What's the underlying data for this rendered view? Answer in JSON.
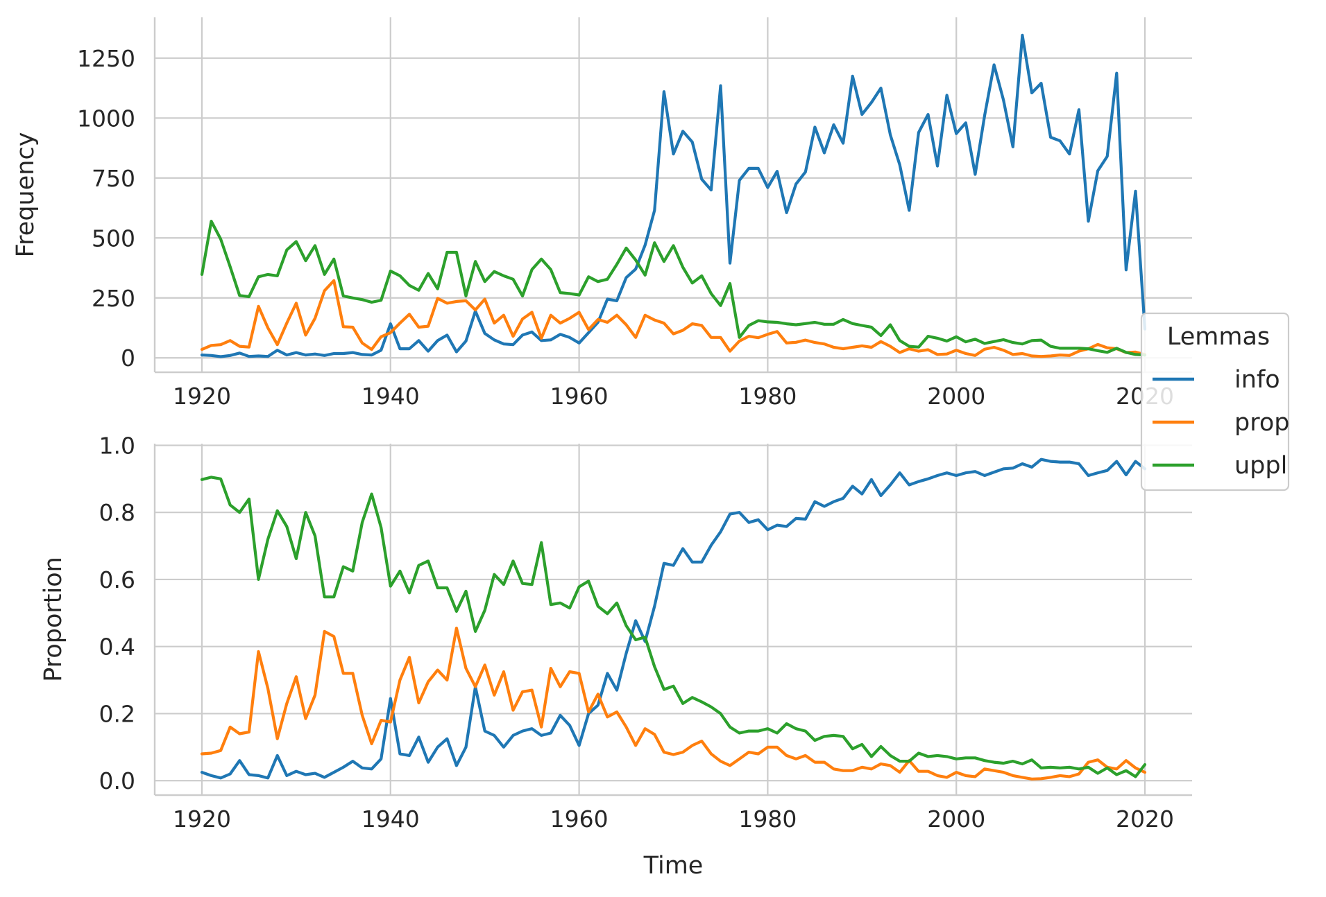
{
  "chart_data": [
    {
      "type": "line",
      "panel": "top",
      "xlabel": "",
      "ylabel": "Frequency",
      "xlim": [
        1915,
        2025
      ],
      "ylim": [
        -60,
        1420
      ],
      "xticks": [
        1920,
        1940,
        1960,
        1980,
        2000,
        2020
      ],
      "xtick_labels": [
        "1920",
        "1940",
        "1960",
        "1980",
        "2000",
        "2020"
      ],
      "yticks": [
        0,
        250,
        500,
        750,
        1000,
        1250
      ],
      "ytick_labels": [
        "0",
        "250",
        "500",
        "750",
        "1000",
        "1250"
      ],
      "grid": true,
      "x": [
        1920,
        1921,
        1922,
        1923,
        1924,
        1925,
        1926,
        1927,
        1928,
        1929,
        1930,
        1931,
        1932,
        1933,
        1934,
        1935,
        1936,
        1937,
        1938,
        1939,
        1940,
        1941,
        1942,
        1943,
        1944,
        1945,
        1946,
        1947,
        1948,
        1949,
        1950,
        1951,
        1952,
        1953,
        1954,
        1955,
        1956,
        1957,
        1958,
        1959,
        1960,
        1961,
        1962,
        1963,
        1964,
        1965,
        1966,
        1967,
        1968,
        1969,
        1970,
        1971,
        1972,
        1973,
        1974,
        1975,
        1976,
        1977,
        1978,
        1979,
        1980,
        1981,
        1982,
        1983,
        1984,
        1985,
        1986,
        1987,
        1988,
        1989,
        1990,
        1991,
        1992,
        1993,
        1994,
        1995,
        1996,
        1997,
        1998,
        1999,
        2000,
        2001,
        2002,
        2003,
        2004,
        2005,
        2006,
        2007,
        2008,
        2009,
        2010,
        2011,
        2012,
        2013,
        2014,
        2015,
        2016,
        2017,
        2018,
        2019,
        2020
      ],
      "series": [
        {
          "name": "info",
          "values": [
            12,
            10,
            5,
            10,
            20,
            6,
            8,
            6,
            32,
            12,
            22,
            12,
            16,
            10,
            18,
            18,
            22,
            14,
            12,
            32,
            142,
            38,
            38,
            72,
            28,
            72,
            95,
            25,
            70,
            195,
            102,
            75,
            58,
            55,
            95,
            108,
            72,
            75,
            98,
            85,
            62,
            105,
            148,
            245,
            238,
            335,
            370,
            470,
            615,
            1110,
            850,
            945,
            900,
            745,
            700,
            1135,
            395,
            740,
            790,
            790,
            710,
            778,
            605,
            725,
            775,
            962,
            855,
            972,
            895,
            1175,
            1015,
            1065,
            1125,
            930,
            805,
            615,
            940,
            1015,
            800,
            1095,
            935,
            980,
            765,
            1010,
            1222,
            1075,
            880,
            1345,
            1105,
            1145,
            920,
            905,
            850,
            1035,
            570,
            780,
            840,
            1187,
            367,
            695,
            120
          ]
        },
        {
          "name": "prop",
          "values": [
            35,
            52,
            55,
            72,
            48,
            45,
            215,
            125,
            55,
            145,
            228,
            95,
            165,
            280,
            322,
            130,
            128,
            62,
            35,
            88,
            105,
            145,
            182,
            128,
            132,
            248,
            228,
            235,
            238,
            200,
            245,
            145,
            178,
            90,
            162,
            190,
            82,
            178,
            145,
            165,
            190,
            118,
            160,
            148,
            178,
            138,
            85,
            178,
            158,
            145,
            100,
            115,
            142,
            135,
            85,
            85,
            28,
            70,
            90,
            84,
            98,
            110,
            62,
            65,
            74,
            64,
            58,
            44,
            38,
            44,
            50,
            44,
            68,
            48,
            22,
            38,
            28,
            34,
            14,
            16,
            32,
            18,
            10,
            36,
            44,
            32,
            14,
            18,
            8,
            6,
            8,
            12,
            10,
            28,
            38,
            56,
            42,
            38,
            22,
            24,
            14
          ]
        },
        {
          "name": "uppl",
          "values": [
            348,
            570,
            495,
            380,
            260,
            255,
            338,
            348,
            342,
            450,
            485,
            405,
            468,
            348,
            412,
            258,
            250,
            243,
            232,
            240,
            362,
            342,
            302,
            282,
            352,
            288,
            440,
            440,
            258,
            402,
            318,
            360,
            342,
            328,
            258,
            368,
            412,
            368,
            272,
            268,
            262,
            338,
            318,
            328,
            390,
            458,
            408,
            345,
            480,
            402,
            468,
            378,
            312,
            342,
            268,
            218,
            310,
            85,
            135,
            155,
            150,
            148,
            142,
            138,
            143,
            148,
            140,
            140,
            160,
            143,
            135,
            128,
            93,
            138,
            72,
            48,
            45,
            90,
            82,
            70,
            88,
            67,
            78,
            60,
            68,
            76,
            64,
            58,
            72,
            74,
            48,
            40,
            40,
            40,
            38,
            30,
            23,
            40,
            23,
            14,
            12
          ]
        }
      ]
    },
    {
      "type": "line",
      "panel": "bottom",
      "xlabel": "Time",
      "ylabel": "Proportion",
      "xlim": [
        1915,
        2025
      ],
      "ylim": [
        -0.043,
        1.005
      ],
      "xticks": [
        1920,
        1940,
        1960,
        1980,
        2000,
        2020
      ],
      "xtick_labels": [
        "1920",
        "1940",
        "1960",
        "1980",
        "2000",
        "2020"
      ],
      "yticks": [
        0.0,
        0.2,
        0.4,
        0.6,
        0.8,
        1.0
      ],
      "ytick_labels": [
        "0.0",
        "0.2",
        "0.4",
        "0.6",
        "0.8",
        "1.0"
      ],
      "grid": true,
      "x": [
        1920,
        1921,
        1922,
        1923,
        1924,
        1925,
        1926,
        1927,
        1928,
        1929,
        1930,
        1931,
        1932,
        1933,
        1934,
        1935,
        1936,
        1937,
        1938,
        1939,
        1940,
        1941,
        1942,
        1943,
        1944,
        1945,
        1946,
        1947,
        1948,
        1949,
        1950,
        1951,
        1952,
        1953,
        1954,
        1955,
        1956,
        1957,
        1958,
        1959,
        1960,
        1961,
        1962,
        1963,
        1964,
        1965,
        1966,
        1967,
        1968,
        1969,
        1970,
        1971,
        1972,
        1973,
        1974,
        1975,
        1976,
        1977,
        1978,
        1979,
        1980,
        1981,
        1982,
        1983,
        1984,
        1985,
        1986,
        1987,
        1988,
        1989,
        1990,
        1991,
        1992,
        1993,
        1994,
        1995,
        1996,
        1997,
        1998,
        1999,
        2000,
        2001,
        2002,
        2003,
        2004,
        2005,
        2006,
        2007,
        2008,
        2009,
        2010,
        2011,
        2012,
        2013,
        2014,
        2015,
        2016,
        2017,
        2018,
        2019,
        2020
      ],
      "series": [
        {
          "name": "info",
          "values": [
            0.025,
            0.015,
            0.008,
            0.02,
            0.06,
            0.018,
            0.015,
            0.008,
            0.075,
            0.015,
            0.028,
            0.018,
            0.022,
            0.01,
            0.025,
            0.04,
            0.058,
            0.038,
            0.035,
            0.065,
            0.245,
            0.08,
            0.075,
            0.13,
            0.055,
            0.1,
            0.125,
            0.045,
            0.1,
            0.28,
            0.148,
            0.135,
            0.1,
            0.135,
            0.148,
            0.155,
            0.135,
            0.142,
            0.195,
            0.165,
            0.105,
            0.2,
            0.225,
            0.32,
            0.27,
            0.38,
            0.477,
            0.415,
            0.52,
            0.648,
            0.642,
            0.692,
            0.652,
            0.652,
            0.702,
            0.742,
            0.795,
            0.8,
            0.77,
            0.778,
            0.748,
            0.762,
            0.758,
            0.782,
            0.78,
            0.832,
            0.818,
            0.832,
            0.842,
            0.878,
            0.855,
            0.898,
            0.85,
            0.882,
            0.918,
            0.882,
            0.892,
            0.9,
            0.91,
            0.918,
            0.91,
            0.918,
            0.922,
            0.91,
            0.92,
            0.93,
            0.932,
            0.945,
            0.935,
            0.958,
            0.952,
            0.95,
            0.95,
            0.945,
            0.91,
            0.918,
            0.925,
            0.952,
            0.912,
            0.952,
            0.93
          ]
        },
        {
          "name": "prop",
          "values": [
            0.08,
            0.082,
            0.09,
            0.16,
            0.14,
            0.145,
            0.385,
            0.275,
            0.125,
            0.23,
            0.31,
            0.185,
            0.255,
            0.445,
            0.43,
            0.32,
            0.32,
            0.195,
            0.11,
            0.18,
            0.175,
            0.3,
            0.368,
            0.232,
            0.295,
            0.33,
            0.3,
            0.455,
            0.335,
            0.28,
            0.345,
            0.255,
            0.325,
            0.21,
            0.265,
            0.27,
            0.16,
            0.335,
            0.28,
            0.325,
            0.32,
            0.205,
            0.258,
            0.19,
            0.205,
            0.16,
            0.105,
            0.155,
            0.138,
            0.085,
            0.078,
            0.085,
            0.105,
            0.118,
            0.08,
            0.058,
            0.045,
            0.065,
            0.085,
            0.08,
            0.1,
            0.1,
            0.075,
            0.065,
            0.075,
            0.055,
            0.055,
            0.035,
            0.03,
            0.03,
            0.04,
            0.035,
            0.05,
            0.045,
            0.025,
            0.06,
            0.028,
            0.028,
            0.015,
            0.01,
            0.025,
            0.015,
            0.012,
            0.035,
            0.03,
            0.025,
            0.015,
            0.01,
            0.005,
            0.006,
            0.01,
            0.015,
            0.012,
            0.02,
            0.055,
            0.062,
            0.04,
            0.035,
            0.06,
            0.038,
            0.025
          ]
        },
        {
          "name": "uppl",
          "values": [
            0.898,
            0.905,
            0.9,
            0.822,
            0.8,
            0.84,
            0.6,
            0.72,
            0.805,
            0.758,
            0.662,
            0.8,
            0.73,
            0.548,
            0.548,
            0.638,
            0.625,
            0.77,
            0.855,
            0.755,
            0.58,
            0.625,
            0.56,
            0.642,
            0.655,
            0.575,
            0.575,
            0.505,
            0.565,
            0.445,
            0.508,
            0.615,
            0.585,
            0.655,
            0.588,
            0.585,
            0.71,
            0.525,
            0.53,
            0.515,
            0.578,
            0.595,
            0.52,
            0.498,
            0.53,
            0.462,
            0.42,
            0.428,
            0.34,
            0.272,
            0.282,
            0.23,
            0.248,
            0.235,
            0.22,
            0.2,
            0.16,
            0.142,
            0.148,
            0.148,
            0.155,
            0.142,
            0.17,
            0.155,
            0.148,
            0.12,
            0.132,
            0.135,
            0.132,
            0.095,
            0.108,
            0.072,
            0.102,
            0.075,
            0.058,
            0.058,
            0.082,
            0.072,
            0.075,
            0.072,
            0.065,
            0.068,
            0.068,
            0.06,
            0.055,
            0.052,
            0.058,
            0.05,
            0.062,
            0.038,
            0.04,
            0.038,
            0.04,
            0.035,
            0.04,
            0.022,
            0.038,
            0.018,
            0.03,
            0.012,
            0.048
          ]
        }
      ]
    }
  ],
  "legend": {
    "title": "Lemmas",
    "placement": "right",
    "items": [
      {
        "label": "info",
        "color": "#1f77b4"
      },
      {
        "label": "prop",
        "color": "#ff7f0e"
      },
      {
        "label": "uppl",
        "color": "#2ca02c"
      }
    ]
  },
  "colors": {
    "info": "#1f77b4",
    "prop": "#ff7f0e",
    "uppl": "#2ca02c"
  }
}
